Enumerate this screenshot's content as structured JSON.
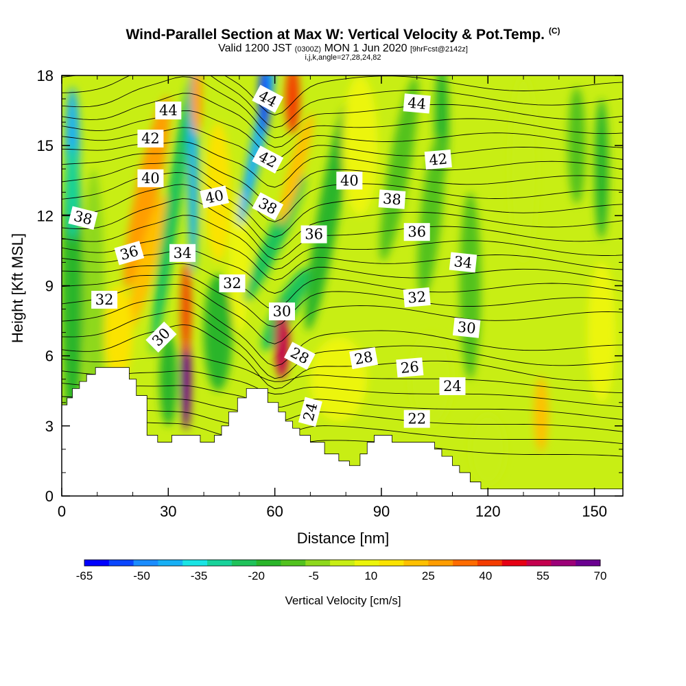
{
  "title": {
    "main": "Wind-Parallel Section at Max W: Vertical Velocity & Pot.Temp.",
    "copyright": "(C)",
    "valid_prefix": "Valid 1200 JST",
    "valid_utc": "(0300Z)",
    "valid_date": "MON 1 Jun 2020",
    "forecast": "[9hrFcst@2142z]",
    "indices": "i,j,k,angle=27,28,24,82"
  },
  "chart_data": {
    "type": "heatmap",
    "xlabel": "Distance [nm]",
    "ylabel": "Height [Kft MSL]",
    "xlim": [
      0,
      158
    ],
    "ylim": [
      0,
      18
    ],
    "xticks": [
      0,
      30,
      60,
      90,
      120,
      150
    ],
    "yticks": [
      0,
      3,
      6,
      9,
      12,
      15,
      18
    ],
    "colorbar": {
      "label": "Vertical Velocity [cm/s]",
      "ticks": [
        -65,
        -50,
        -35,
        -20,
        -5,
        10,
        25,
        40,
        55,
        70
      ],
      "min": -65,
      "max": 70,
      "colors": [
        "#0000ff",
        "#0a46ff",
        "#1a8cff",
        "#17b0f5",
        "#19e4e4",
        "#18d29a",
        "#1fc25a",
        "#2ab52a",
        "#52c21e",
        "#8ed81c",
        "#c8ee14",
        "#ecf50a",
        "#fbe300",
        "#ffc000",
        "#ff9d00",
        "#ff6c00",
        "#f43c00",
        "#e60014",
        "#c4004e",
        "#9c0078",
        "#6a0090"
      ]
    },
    "theta_contour_labels": [
      {
        "value": "44",
        "x": 30,
        "y": 16.5,
        "angle": 0
      },
      {
        "value": "44",
        "x": 58,
        "y": 17.0,
        "angle": 28
      },
      {
        "value": "44",
        "x": 100,
        "y": 16.8,
        "angle": 5
      },
      {
        "value": "42",
        "x": 25,
        "y": 15.3,
        "angle": 0
      },
      {
        "value": "42",
        "x": 58,
        "y": 14.4,
        "angle": 28
      },
      {
        "value": "42",
        "x": 106,
        "y": 14.4,
        "angle": -5
      },
      {
        "value": "40",
        "x": 25,
        "y": 13.6,
        "angle": 0
      },
      {
        "value": "40",
        "x": 43,
        "y": 12.8,
        "angle": -12
      },
      {
        "value": "40",
        "x": 81,
        "y": 13.5,
        "angle": 0
      },
      {
        "value": "38",
        "x": 6,
        "y": 11.9,
        "angle": 14
      },
      {
        "value": "38",
        "x": 58,
        "y": 12.4,
        "angle": 28
      },
      {
        "value": "38",
        "x": 93,
        "y": 12.7,
        "angle": 4
      },
      {
        "value": "36",
        "x": 19,
        "y": 10.4,
        "angle": -16
      },
      {
        "value": "36",
        "x": 71,
        "y": 11.2,
        "angle": 0
      },
      {
        "value": "36",
        "x": 100,
        "y": 11.3,
        "angle": 0
      },
      {
        "value": "34",
        "x": 34,
        "y": 10.4,
        "angle": 0
      },
      {
        "value": "34",
        "x": 113,
        "y": 10.0,
        "angle": 6
      },
      {
        "value": "32",
        "x": 12,
        "y": 8.4,
        "angle": 0
      },
      {
        "value": "32",
        "x": 48,
        "y": 9.1,
        "angle": 0
      },
      {
        "value": "32",
        "x": 100,
        "y": 8.5,
        "angle": -5
      },
      {
        "value": "30",
        "x": 28,
        "y": 6.8,
        "angle": -45
      },
      {
        "value": "30",
        "x": 62,
        "y": 7.9,
        "angle": 0
      },
      {
        "value": "30",
        "x": 114,
        "y": 7.2,
        "angle": 6
      },
      {
        "value": "28",
        "x": 67,
        "y": 6.0,
        "angle": 28
      },
      {
        "value": "28",
        "x": 85,
        "y": 5.9,
        "angle": -10
      },
      {
        "value": "26",
        "x": 98,
        "y": 5.5,
        "angle": -5
      },
      {
        "value": "24",
        "x": 70,
        "y": 3.6,
        "angle": -75
      },
      {
        "value": "24",
        "x": 110,
        "y": 4.7,
        "angle": 0
      },
      {
        "value": "22",
        "x": 100,
        "y": 3.3,
        "angle": 0
      }
    ]
  }
}
